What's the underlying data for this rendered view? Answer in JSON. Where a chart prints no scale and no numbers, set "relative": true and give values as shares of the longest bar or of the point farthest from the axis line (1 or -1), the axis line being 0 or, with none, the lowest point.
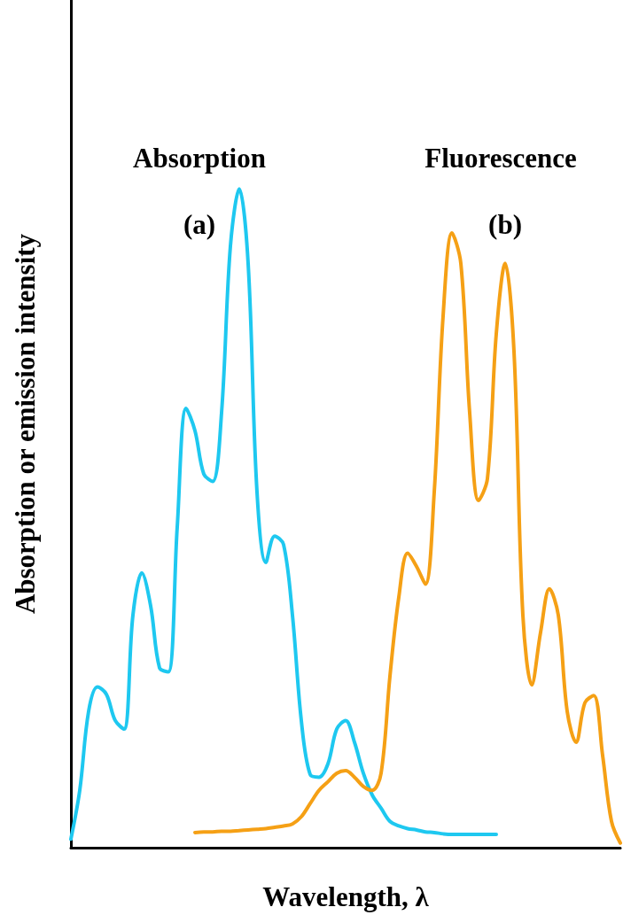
{
  "chart_data": {
    "type": "line",
    "relative": true,
    "xlabel": "Wavelength, λ",
    "ylabel": "Absorption or emission intensity",
    "grid": false,
    "legend": false,
    "marker": "none",
    "line_style": "solid",
    "annotations": [
      "(a)",
      "(b)"
    ],
    "categories": [
      null,
      null,
      null,
      null,
      null,
      null,
      null,
      null,
      null,
      null,
      null,
      null,
      null,
      null,
      null,
      null,
      null,
      null,
      null,
      null,
      null,
      null,
      null,
      null,
      null,
      null,
      null,
      null,
      null,
      null,
      null,
      null,
      null,
      null,
      null,
      null,
      null,
      null,
      null,
      null,
      null,
      null,
      null,
      null,
      null,
      null,
      null,
      null,
      null,
      null,
      null,
      null,
      null,
      null,
      null,
      null,
      null,
      null,
      null,
      null,
      null,
      null,
      null
    ],
    "series": [
      {
        "name": "Absorption",
        "color": "#1ec8f0",
        "values": [
          0.013,
          0.087,
          0.207,
          0.244,
          0.233,
          0.193,
          0.18,
          0.353,
          0.417,
          0.367,
          0.273,
          0.267,
          0.487,
          0.667,
          0.633,
          0.567,
          0.556,
          0.66,
          0.913,
          1,
          0.887,
          0.54,
          0.433,
          0.473,
          0.46,
          0.353,
          0.193,
          0.111,
          0.107,
          0.127,
          0.18,
          0.193,
          0.16,
          0.113,
          0.08,
          0.06,
          0.04,
          0.033,
          0.029,
          0.027,
          0.024,
          0.023,
          0.021,
          0.02,
          0.02,
          0.02,
          0.02,
          0.02,
          0.02,
          null,
          null,
          null,
          null,
          null,
          null,
          null,
          null,
          null,
          null,
          null,
          null,
          null,
          null
        ]
      },
      {
        "name": "Fluorescence",
        "color": "#f5a015",
        "values": [
          null,
          null,
          null,
          null,
          null,
          null,
          null,
          null,
          null,
          null,
          null,
          null,
          null,
          null,
          0.023,
          0.024,
          0.024,
          0.025,
          0.025,
          0.026,
          0.027,
          0.028,
          0.029,
          0.031,
          0.033,
          0.036,
          0.047,
          0.067,
          0.087,
          0.1,
          0.113,
          0.117,
          0.107,
          0.093,
          0.087,
          0.113,
          0.26,
          0.38,
          0.447,
          0.427,
          0.4,
          0.54,
          0.807,
          0.933,
          0.887,
          0.66,
          0.527,
          0.56,
          0.78,
          0.887,
          0.753,
          0.353,
          0.247,
          0.327,
          0.393,
          0.353,
          0.207,
          0.16,
          0.22,
          0.231,
          0.14,
          0.04,
          0.007
        ]
      }
    ]
  }
}
